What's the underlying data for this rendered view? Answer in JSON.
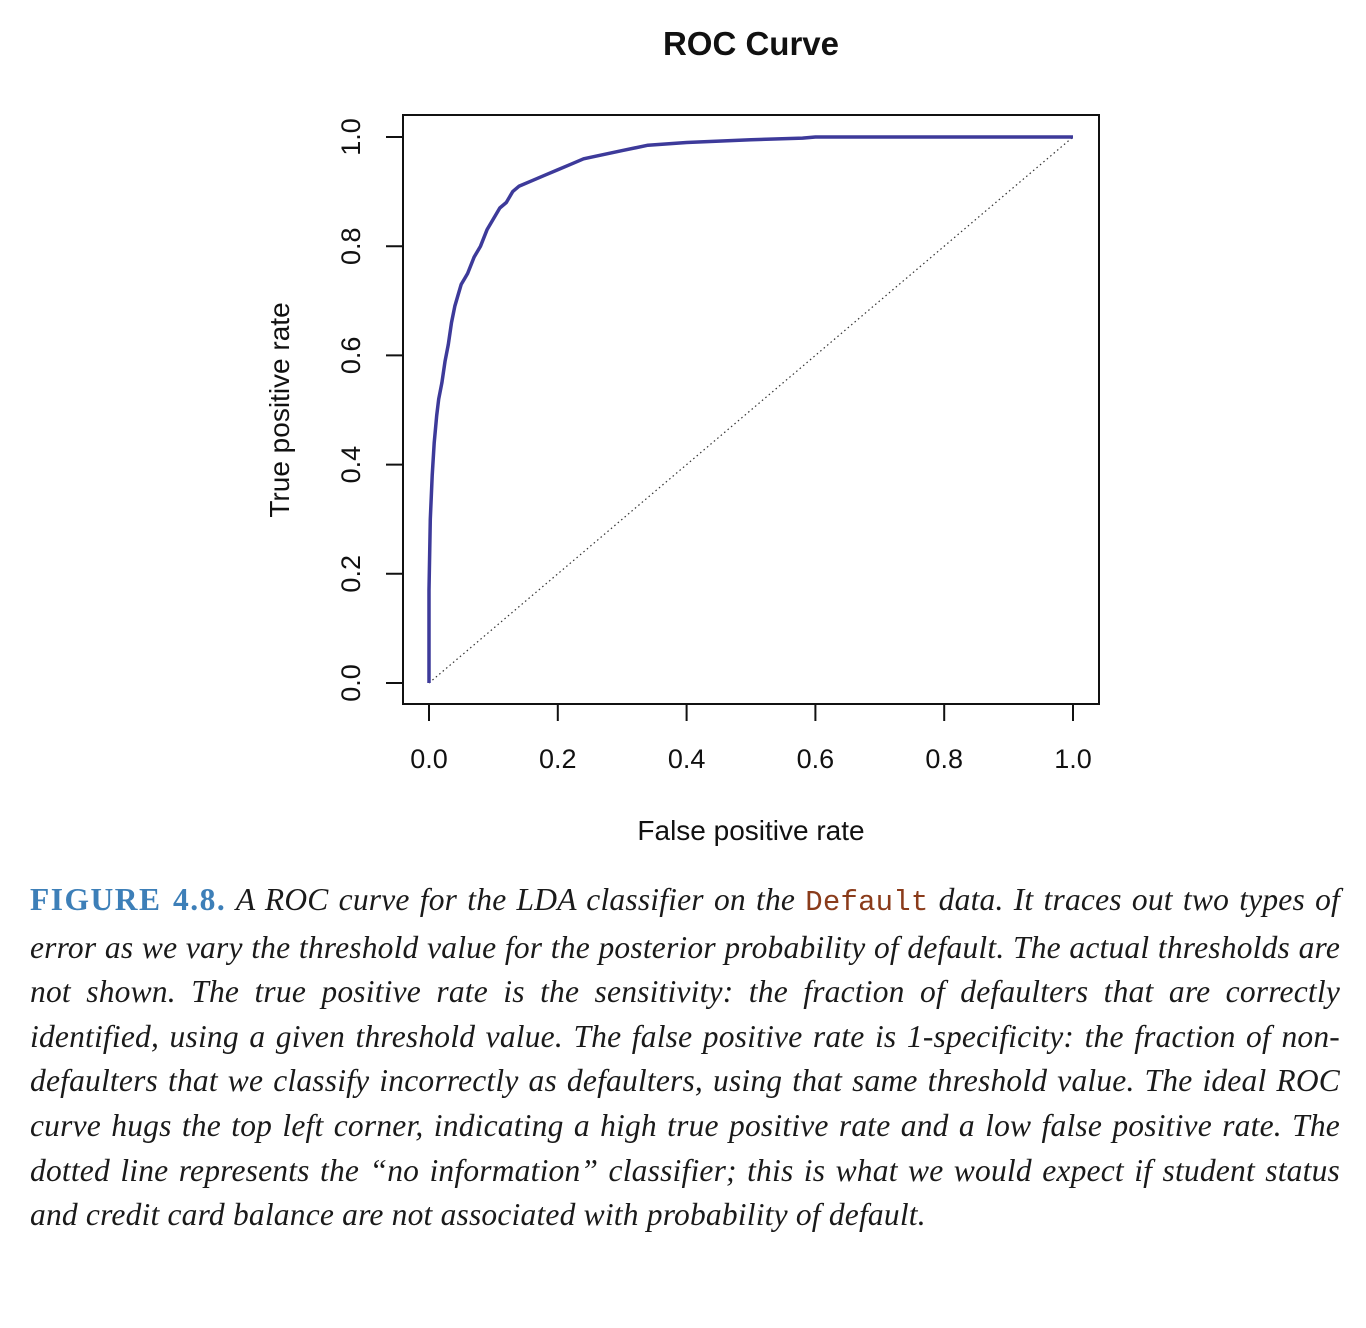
{
  "chart_data": {
    "type": "line",
    "title": "ROC Curve",
    "xlabel": "False positive rate",
    "ylabel": "True positive rate",
    "xlim": [
      0,
      1
    ],
    "ylim": [
      0,
      1
    ],
    "xticks": [
      "0.0",
      "0.2",
      "0.4",
      "0.6",
      "0.8",
      "1.0"
    ],
    "yticks": [
      "0.0",
      "0.2",
      "0.4",
      "0.6",
      "0.8",
      "1.0"
    ],
    "grid": false,
    "series": [
      {
        "line_style": "solid",
        "color": "#3d3a9a",
        "x": [
          0.0,
          0.0,
          0.002,
          0.005,
          0.008,
          0.012,
          0.015,
          0.02,
          0.025,
          0.03,
          0.035,
          0.04,
          0.045,
          0.05,
          0.055,
          0.06,
          0.07,
          0.08,
          0.09,
          0.1,
          0.11,
          0.12,
          0.13,
          0.14,
          0.16,
          0.18,
          0.2,
          0.22,
          0.24,
          0.26,
          0.3,
          0.34,
          0.4,
          0.5,
          0.58,
          0.6,
          0.7,
          0.8,
          0.9,
          1.0
        ],
        "y": [
          0.0,
          0.17,
          0.3,
          0.38,
          0.44,
          0.49,
          0.52,
          0.55,
          0.59,
          0.62,
          0.66,
          0.69,
          0.71,
          0.73,
          0.74,
          0.75,
          0.78,
          0.8,
          0.83,
          0.85,
          0.87,
          0.88,
          0.9,
          0.91,
          0.92,
          0.93,
          0.94,
          0.95,
          0.96,
          0.965,
          0.975,
          0.985,
          0.99,
          0.995,
          0.998,
          1.0,
          1.0,
          1.0,
          1.0,
          1.0
        ]
      },
      {
        "line_style": "dotted",
        "color": "#333333",
        "x": [
          0,
          1
        ],
        "y": [
          0,
          1
        ]
      }
    ]
  },
  "caption": {
    "label": "FIGURE 4.8.",
    "text_before": " A ROC curve for the LDA classifier on the ",
    "code": "Default",
    "text_after": " data. It traces out two types of error as we vary the threshold value for the posterior probability of default. The actual thresholds are not shown. The true positive rate is the sensitivity: the fraction of defaulters that are correctly identified, using a given threshold value. The false positive rate is 1-specificity: the fraction of non-defaulters that we classify incorrectly as defaulters, using that same threshold value. The ideal ROC curve hugs the top left corner, indicating a high true positive rate and a low false positive rate. The dotted line represents the “no information” classifier; this is what we would expect if student status and credit card balance are not associated with probability of default."
  }
}
